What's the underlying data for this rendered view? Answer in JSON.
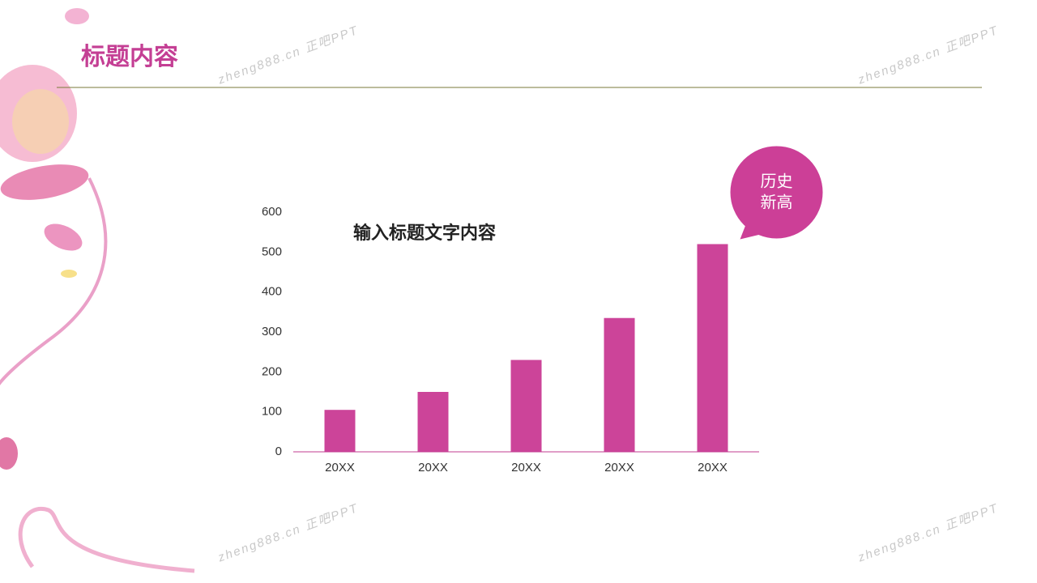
{
  "header": {
    "title": "标题内容"
  },
  "watermark": "zheng888.cn 正吧PPT",
  "chart_data": {
    "type": "bar",
    "title": "输入标题文字内容",
    "categories": [
      "20XX",
      "20XX",
      "20XX",
      "20XX",
      "20XX"
    ],
    "values": [
      105,
      150,
      230,
      335,
      520
    ],
    "color": "#cc4499",
    "ylim": [
      0,
      600
    ],
    "yticks": [
      0,
      100,
      200,
      300,
      400,
      500,
      600
    ],
    "grid": false,
    "annotation": {
      "lines": [
        "历史",
        "新高"
      ],
      "color": "#cc3f97"
    }
  }
}
